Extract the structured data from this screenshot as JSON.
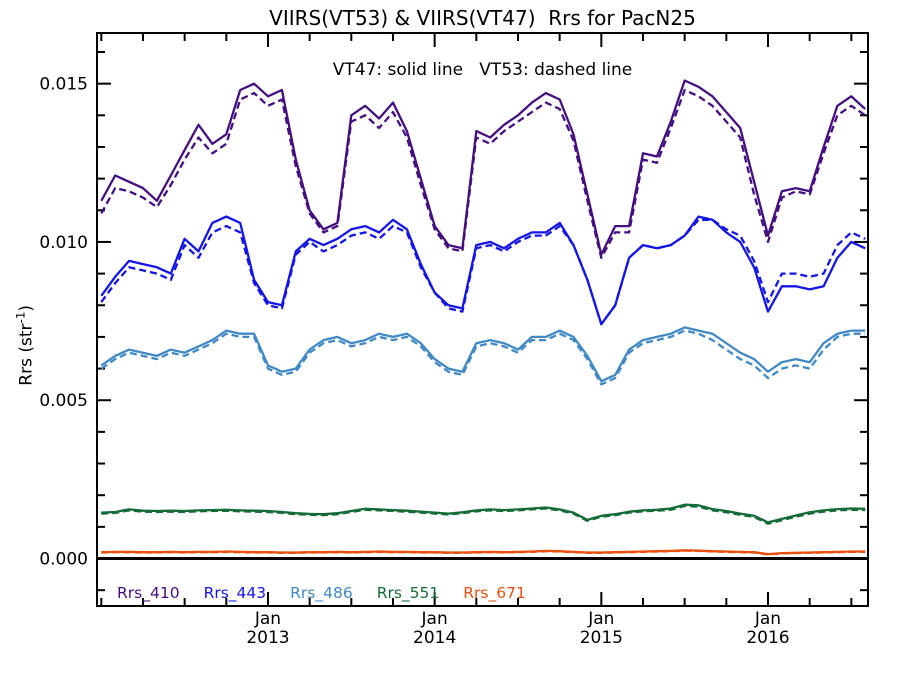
{
  "chart_data": {
    "type": "line",
    "title": "VIIRS(VT53) & VIIRS(VT47)  Rrs for PacN25",
    "annotation": "VT47: solid line   VT53: dashed line",
    "ylabel": {
      "prefix": "Rrs (str",
      "sup": "-1",
      "suffix": ")"
    },
    "x_months": {
      "start": "2012-01",
      "end": "2016-08",
      "step_months": 1,
      "count": 56
    },
    "xlim_months": [
      -0.31,
      55.2
    ],
    "ylim": [
      -0.0015,
      0.0166
    ],
    "grid": "off",
    "y_major_ticks": [
      {
        "value": 0.0,
        "label": "0.000"
      },
      {
        "value": 0.005,
        "label": "0.005"
      },
      {
        "value": 0.01,
        "label": "0.010"
      },
      {
        "value": 0.015,
        "label": "0.015"
      }
    ],
    "y_minor": {
      "min": -0.001,
      "max": 0.016,
      "step": 0.001
    },
    "x_minor_step_months": 3,
    "x_major_ticks": [
      {
        "month": 12,
        "line1": "Jan",
        "line2": "2013"
      },
      {
        "month": 24,
        "line1": "Jan",
        "line2": "2014"
      },
      {
        "month": 36,
        "line1": "Jan",
        "line2": "2015"
      },
      {
        "month": 48,
        "line1": "Jan",
        "line2": "2016"
      }
    ],
    "zero_line_value": 0.0,
    "zero_line_color": "#000000",
    "legend": [
      {
        "label": "Rrs_410",
        "color": "#44107f"
      },
      {
        "label": "Rrs_443",
        "color": "#1515e6"
      },
      {
        "label": "Rrs_486",
        "color": "#4289c4"
      },
      {
        "label": "Rrs_551",
        "color": "#156b38"
      },
      {
        "label": "Rrs_671",
        "color": "#e8500f"
      }
    ],
    "series": [
      {
        "band": "Rrs_410",
        "version": "VT47",
        "style": "solid",
        "color": "#44107f",
        "scale": 0.0001,
        "values": [
          113,
          121,
          119,
          117,
          113,
          121,
          129,
          137,
          131,
          134,
          148,
          150,
          146,
          148,
          126,
          110,
          104,
          106,
          140,
          143,
          139,
          144,
          135,
          120,
          105,
          99,
          98,
          135,
          133,
          137,
          140,
          144,
          147,
          145,
          134,
          115,
          96,
          105,
          105,
          128,
          127,
          138,
          151,
          149,
          146,
          141,
          136,
          119,
          102,
          116,
          117,
          116,
          130,
          143,
          146,
          142
        ]
      },
      {
        "band": "Rrs_410",
        "version": "VT53",
        "style": "dashed",
        "color": "#44107f",
        "scale": 0.0001,
        "values": [
          109,
          117,
          116,
          114,
          111,
          118,
          126,
          133,
          128,
          131,
          145,
          147,
          143,
          145,
          124,
          109,
          103,
          105,
          138,
          140,
          136,
          141,
          133,
          118,
          104,
          98,
          97,
          133,
          131,
          135,
          138,
          141,
          144,
          142,
          132,
          113,
          95,
          103,
          103,
          126,
          125,
          136,
          148,
          146,
          143,
          138,
          133,
          115,
          100,
          114,
          116,
          115,
          128,
          140,
          143,
          140
        ]
      },
      {
        "band": "Rrs_443",
        "version": "VT47",
        "style": "solid",
        "color": "#1515e6",
        "scale": 0.0001,
        "values": [
          83,
          89,
          94,
          93,
          92,
          90,
          101,
          97,
          106,
          108,
          106,
          88,
          81,
          80,
          97,
          101,
          99,
          101,
          104,
          105,
          103,
          107,
          104,
          93,
          84,
          80,
          79,
          99,
          100,
          98,
          101,
          103,
          103,
          106,
          99,
          88,
          74,
          80,
          95,
          99,
          98,
          99,
          102,
          108,
          107,
          103,
          100,
          92,
          78,
          86,
          86,
          85,
          86,
          95,
          100,
          98
        ]
      },
      {
        "band": "Rrs_443",
        "version": "VT53",
        "style": "dashed",
        "color": "#1515e6",
        "scale": 0.0001,
        "values": [
          81,
          87,
          92,
          91,
          90,
          88,
          99,
          95,
          103,
          105,
          103,
          87,
          80,
          79,
          96,
          100,
          97,
          99,
          102,
          103,
          101,
          105,
          103,
          92,
          84,
          79,
          78,
          98,
          99,
          97,
          100,
          102,
          102,
          105,
          99,
          88,
          74,
          80,
          95,
          99,
          98,
          99,
          102,
          107,
          107,
          104,
          102,
          94,
          81,
          90,
          90,
          89,
          90,
          99,
          103,
          101
        ]
      },
      {
        "band": "Rrs_486",
        "version": "VT47",
        "style": "solid",
        "color": "#4289c4",
        "scale": 0.0001,
        "values": [
          61,
          64,
          66,
          65,
          64,
          66,
          65,
          67,
          69,
          72,
          71,
          71,
          61,
          59,
          60,
          66,
          69,
          70,
          68,
          69,
          71,
          70,
          71,
          68,
          63,
          60,
          59,
          68,
          69,
          68,
          66,
          70,
          70,
          72,
          70,
          64,
          56,
          58,
          66,
          69,
          70,
          71,
          73,
          72,
          71,
          68,
          65,
          63,
          59,
          62,
          63,
          62,
          68,
          71,
          72,
          72
        ]
      },
      {
        "band": "Rrs_486",
        "version": "VT53",
        "style": "dashed",
        "color": "#4289c4",
        "scale": 0.0001,
        "values": [
          60,
          63,
          65,
          64,
          63,
          65,
          64,
          66,
          68,
          71,
          70,
          70,
          60,
          58,
          59,
          65,
          68,
          69,
          67,
          68,
          70,
          69,
          70,
          67,
          62,
          59,
          58,
          67,
          68,
          67,
          65,
          69,
          69,
          71,
          69,
          63,
          55,
          57,
          65,
          68,
          69,
          70,
          72,
          71,
          69,
          66,
          63,
          61,
          57,
          60,
          61,
          60,
          66,
          70,
          71,
          71
        ]
      },
      {
        "band": "Rrs_551",
        "version": "VT47",
        "style": "solid",
        "color": "#156b38",
        "scale": 1e-05,
        "values": [
          145,
          147,
          155,
          151,
          150,
          151,
          150,
          152,
          153,
          154,
          152,
          151,
          150,
          147,
          143,
          141,
          140,
          143,
          150,
          157,
          155,
          153,
          151,
          148,
          145,
          142,
          146,
          152,
          155,
          153,
          155,
          158,
          161,
          155,
          145,
          122,
          135,
          140,
          148,
          152,
          154,
          158,
          170,
          168,
          156,
          150,
          142,
          135,
          114,
          125,
          136,
          146,
          152,
          156,
          158,
          157
        ]
      },
      {
        "band": "Rrs_551",
        "version": "VT53",
        "style": "dashed",
        "color": "#156b38",
        "scale": 1e-05,
        "values": [
          142,
          144,
          152,
          148,
          147,
          148,
          147,
          149,
          150,
          151,
          149,
          148,
          147,
          144,
          140,
          138,
          137,
          140,
          147,
          154,
          152,
          150,
          148,
          145,
          142,
          139,
          143,
          149,
          152,
          150,
          152,
          155,
          158,
          152,
          142,
          119,
          132,
          137,
          145,
          149,
          151,
          154,
          166,
          164,
          152,
          146,
          138,
          131,
          110,
          121,
          132,
          142,
          148,
          152,
          154,
          153
        ]
      },
      {
        "band": "Rrs_671",
        "version": "VT47",
        "style": "solid",
        "color": "#e8500f",
        "scale": 1e-05,
        "values": [
          20,
          21,
          21,
          20,
          20,
          21,
          20,
          21,
          21,
          22,
          21,
          20,
          20,
          19,
          19,
          20,
          20,
          21,
          20,
          21,
          22,
          21,
          21,
          20,
          20,
          19,
          19,
          20,
          21,
          20,
          21,
          22,
          24,
          23,
          21,
          19,
          19,
          20,
          21,
          22,
          23,
          24,
          26,
          25,
          23,
          22,
          21,
          20,
          14,
          17,
          18,
          19,
          20,
          21,
          22,
          22
        ]
      },
      {
        "band": "Rrs_671",
        "version": "VT53",
        "style": "dashed",
        "color": "#e8500f",
        "scale": 1e-05,
        "values": [
          19,
          20,
          20,
          19,
          19,
          20,
          19,
          20,
          20,
          21,
          20,
          19,
          19,
          18,
          18,
          19,
          19,
          20,
          19,
          20,
          21,
          20,
          20,
          19,
          19,
          18,
          18,
          19,
          20,
          19,
          20,
          21,
          23,
          22,
          20,
          18,
          18,
          19,
          20,
          21,
          22,
          23,
          25,
          24,
          22,
          21,
          20,
          19,
          13,
          16,
          17,
          18,
          19,
          20,
          21,
          21
        ]
      }
    ]
  }
}
